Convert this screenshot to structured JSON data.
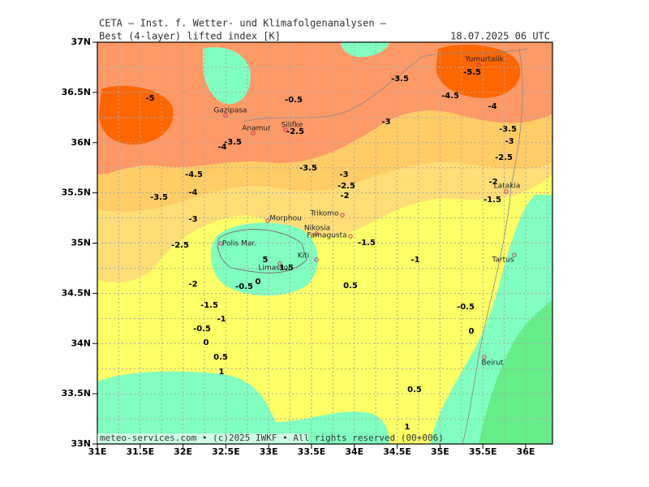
{
  "header": {
    "institute": "CETA – Inst. f. Wetter- und Klimafolgenanalysen –",
    "field": "Best (4-layer) lifted index [K]",
    "valid": "18.07.2025 06 UTC"
  },
  "footer": "meteo-services.com • (c)2025 IWKF • All rights reserved (00+006)",
  "lat_labels": [
    "37N",
    "36.5N",
    "36N",
    "35.5N",
    "35N",
    "34.5N",
    "34N",
    "33.5N",
    "33N"
  ],
  "lon_labels": [
    "31E",
    "31.5E",
    "32E",
    "32.5E",
    "33E",
    "33.5E",
    "34E",
    "34.5E",
    "35E",
    "35.5E",
    "36E"
  ],
  "places": [
    "Yumurtalik",
    "Gazipasa",
    "Anamur",
    "Silifke",
    "Latakia",
    "Trikomo",
    "Morphou",
    "Nikosia",
    "Famagusta",
    "Polis Mar.",
    "Limassol",
    "Kiti",
    "Tartus",
    "Beirut"
  ],
  "contour_labels": [
    "-5",
    "-0.5",
    "-3.5",
    "-5.5",
    "-4.5",
    "-4",
    "-3",
    "-3.5",
    "-3",
    "-2.5",
    "-2",
    "-1.5",
    "-4",
    "-3.5",
    "-2.5",
    "-3.5",
    "-4.5",
    "-3",
    "-2.5",
    "-2",
    "-4",
    "-3.5",
    "-3",
    "-2.5",
    "-1.5",
    "-1",
    "-2",
    "-0.5",
    "0",
    "0.5",
    "-1.5",
    "-1",
    "-0.5",
    "0",
    "0.5",
    "1",
    "-0.5",
    "0",
    "0.5",
    "1",
    "5",
    "1.5"
  ]
}
